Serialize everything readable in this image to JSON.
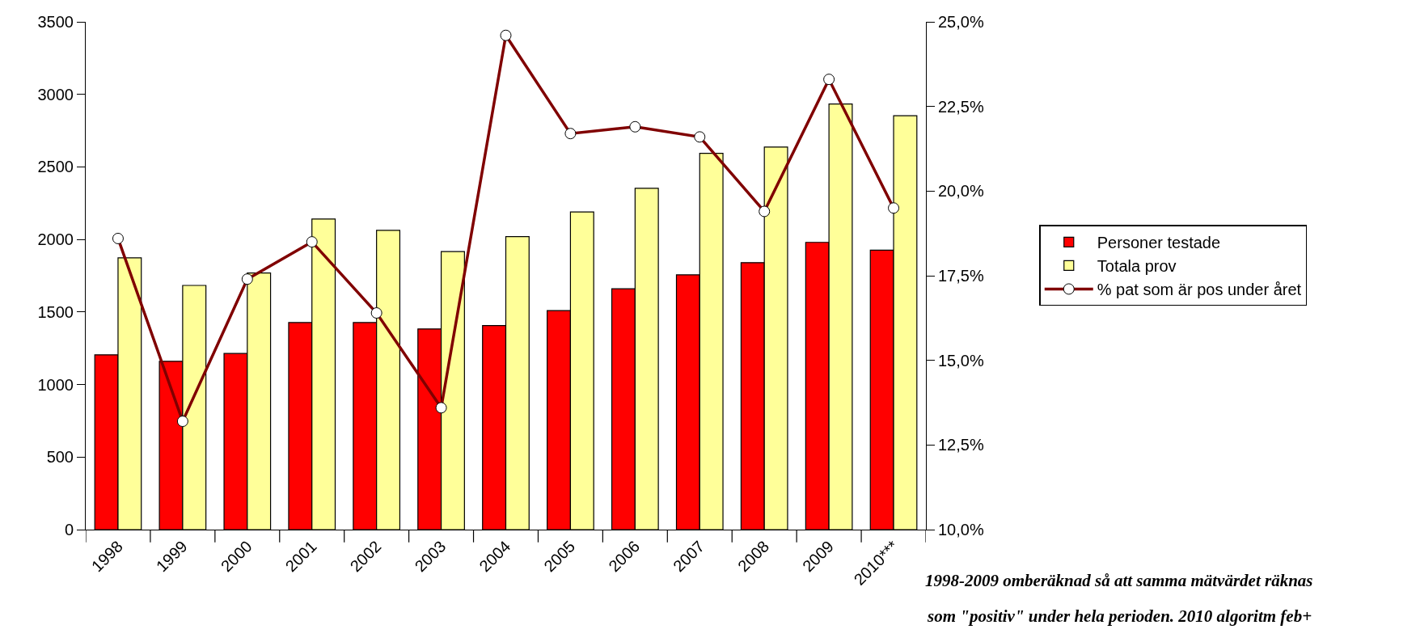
{
  "chart_data": {
    "type": "bar",
    "categories": [
      "1998",
      "1999",
      "2000",
      "2001",
      "2002",
      "2003",
      "2004",
      "2005",
      "2006",
      "2007",
      "2008",
      "2009",
      "2010***"
    ],
    "series": [
      {
        "name": "Personer testade",
        "color": "#ff0000",
        "values": [
          1205,
          1160,
          1214,
          1427,
          1427,
          1383,
          1406,
          1510,
          1660,
          1756,
          1840,
          1980,
          1926
        ]
      },
      {
        "name": "Totala prov",
        "color": "#ffff99",
        "values": [
          1873,
          1683,
          1769,
          2141,
          2063,
          1916,
          2020,
          2190,
          2353,
          2594,
          2637,
          2934,
          2853
        ]
      },
      {
        "name": "% pat som är pos under året",
        "type": "line",
        "axis": "y2",
        "color": "#800000",
        "marker": "circle",
        "line_style": "solid",
        "values": [
          18.6,
          13.2,
          17.4,
          18.5,
          16.4,
          13.6,
          24.6,
          21.7,
          21.9,
          21.6,
          19.4,
          23.3,
          19.5
        ]
      }
    ],
    "ylim": [
      0,
      3500
    ],
    "yticks": [
      0,
      500,
      1000,
      1500,
      2000,
      2500,
      3000,
      3500
    ],
    "y2lim": [
      10,
      25
    ],
    "y2ticks": [
      {
        "value": 10,
        "label": "10,0%"
      },
      {
        "value": 12.5,
        "label": "12,5%"
      },
      {
        "value": 15,
        "label": "15,0%"
      },
      {
        "value": 17.5,
        "label": "17,5%"
      },
      {
        "value": 20,
        "label": "20,0%"
      },
      {
        "value": 22.5,
        "label": "22,5%"
      },
      {
        "value": 25,
        "label": "25,0%"
      }
    ],
    "grid": false,
    "legend": "right",
    "annotations": [
      "1998-2009 omberäknad så att samma mätvärdet räknas",
      "som \"positiv\" under hela perioden. 2010 algoritm feb+"
    ]
  }
}
